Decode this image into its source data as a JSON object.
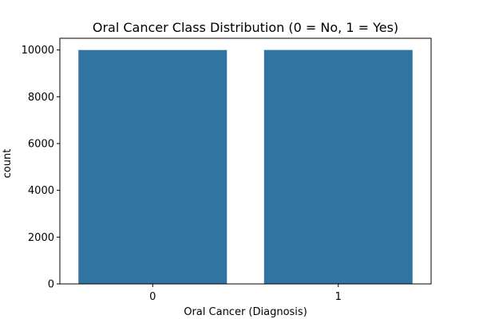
{
  "chart_data": {
    "type": "bar",
    "title": "Oral Cancer Class Distribution (0 = No, 1 = Yes)",
    "xlabel": "Oral Cancer (Diagnosis)",
    "ylabel": "count",
    "categories": [
      "0",
      "1"
    ],
    "values": [
      9999,
      10001
    ],
    "ylim": [
      0,
      10500
    ],
    "yticks": [
      0,
      2000,
      4000,
      6000,
      8000,
      10000
    ],
    "ytick_labels": [
      "0",
      "2000",
      "4000",
      "6000",
      "8000",
      "10000"
    ],
    "bar_color": "#3274a1",
    "grid": false,
    "legend": "none"
  }
}
